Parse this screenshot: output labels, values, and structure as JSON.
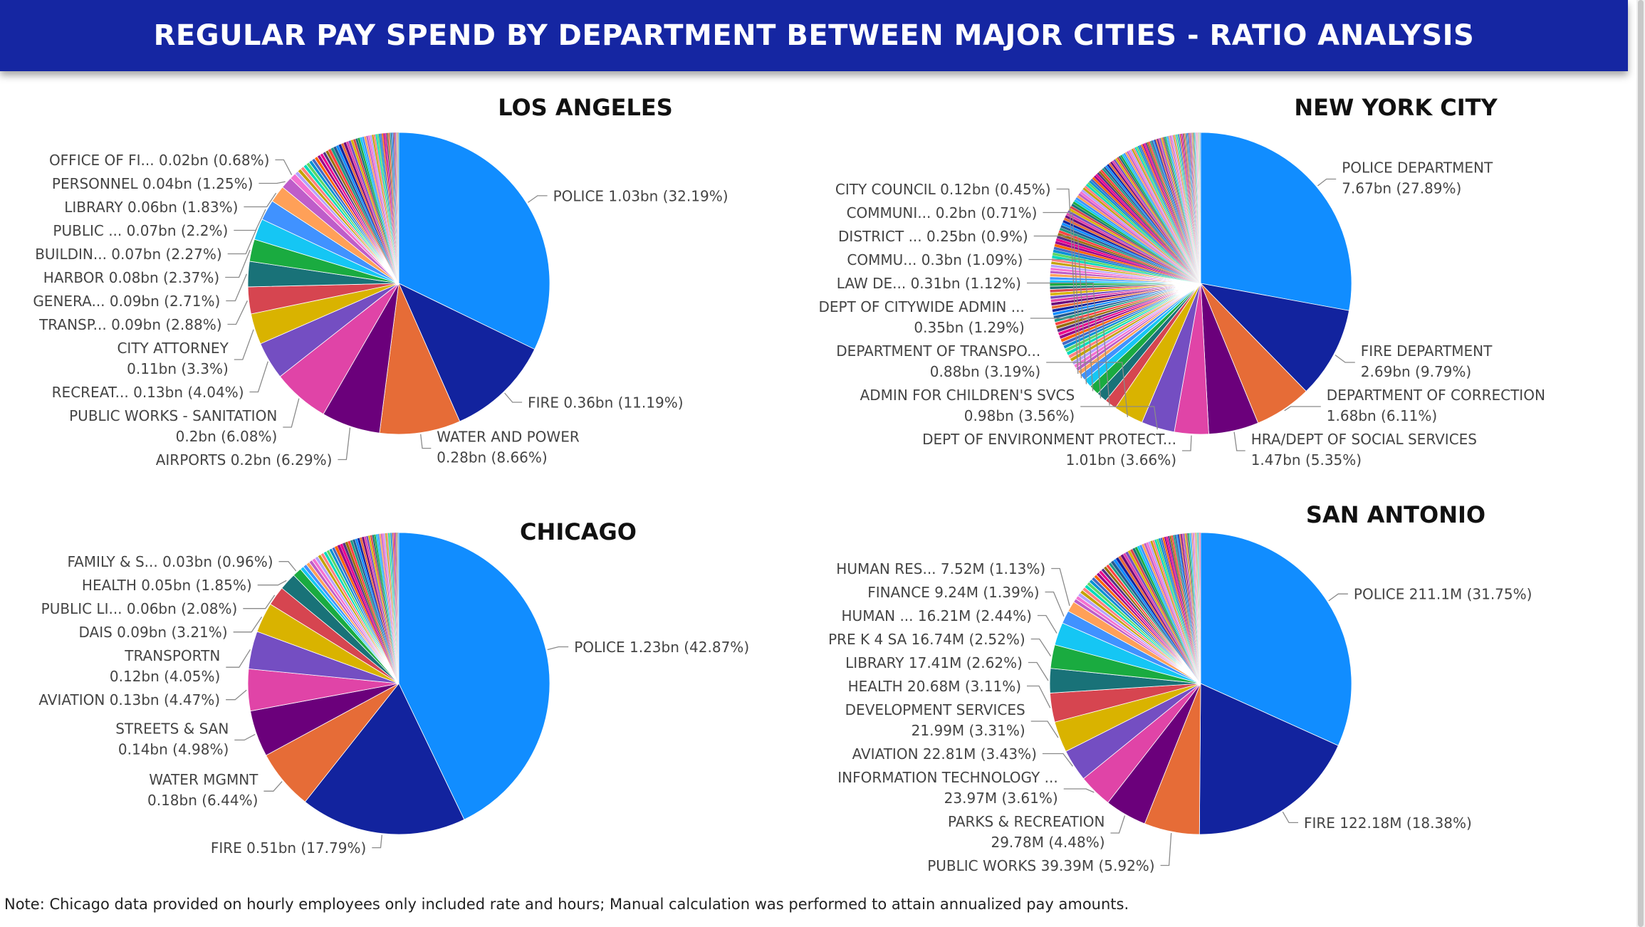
{
  "banner": {
    "title": "REGULAR PAY SPEND BY DEPARTMENT BETWEEN MAJOR CITIES - RATIO ANALYSIS"
  },
  "note": "Note: Chicago data provided on hourly employees only included rate and hours; Manual calculation was performed to attain annualized pay amounts.",
  "colors": {
    "slices": [
      "#118dff",
      "#12239e",
      "#e66c37",
      "#6b007b",
      "#e044a7",
      "#744ec2",
      "#d9b300",
      "#d64550",
      "#197278",
      "#1aab40",
      "#15c6f4",
      "#4092ff",
      "#ffa058",
      "#be5dc9",
      "#f472d0",
      "#b5a1ff",
      "#c4a200",
      "#ff8080",
      "#00dbbc",
      "#5bd667",
      "#0091d5",
      "#4668c5",
      "#ff6300",
      "#99008a",
      "#ec008c",
      "#533285",
      "#99700a",
      "#ff4141",
      "#1f9a85",
      "#255a91"
    ]
  },
  "chart_data": [
    {
      "type": "pie",
      "title": "LOS ANGELES",
      "slices": [
        {
          "label": "POLICE 1.03bn (32.19%)",
          "value": 32.19
        },
        {
          "label": "FIRE 0.36bn (11.19%)",
          "value": 11.19
        },
        {
          "label": "WATER AND POWER|0.28bn (8.66%)",
          "value": 8.66
        },
        {
          "label": "AIRPORTS 0.2bn (6.29%)",
          "value": 6.29
        },
        {
          "label": "PUBLIC WORKS - SANITATION|0.2bn (6.08%)",
          "value": 6.08
        },
        {
          "label": "RECREAT... 0.13bn (4.04%)",
          "value": 4.04
        },
        {
          "label": "CITY ATTORNEY|0.11bn (3.3%)",
          "value": 3.3
        },
        {
          "label": "TRANSP... 0.09bn (2.88%)",
          "value": 2.88
        },
        {
          "label": "GENERA... 0.09bn (2.71%)",
          "value": 2.71
        },
        {
          "label": "HARBOR 0.08bn (2.37%)",
          "value": 2.37
        },
        {
          "label": "BUILDIN... 0.07bn (2.27%)",
          "value": 2.27
        },
        {
          "label": "PUBLIC ... 0.07bn (2.2%)",
          "value": 2.2
        },
        {
          "label": "LIBRARY 0.06bn (1.83%)",
          "value": 1.83
        },
        {
          "label": "PERSONNEL 0.04bn (1.25%)",
          "value": 1.25
        },
        {
          "label": "OFFICE OF FI... 0.02bn (0.68%)",
          "value": 0.68
        }
      ]
    },
    {
      "type": "pie",
      "title": "NEW YORK CITY",
      "slices": [
        {
          "label": "POLICE DEPARTMENT|7.67bn (27.89%)",
          "value": 27.89
        },
        {
          "label": "FIRE DEPARTMENT|2.69bn (9.79%)",
          "value": 9.79
        },
        {
          "label": "DEPARTMENT OF CORRECTION|1.68bn (6.11%)",
          "value": 6.11
        },
        {
          "label": "HRA/DEPT OF SOCIAL SERVICES|1.47bn (5.35%)",
          "value": 5.35
        },
        {
          "label": "DEPT OF ENVIRONMENT PROTECT...|1.01bn (3.66%)",
          "value": 3.66
        },
        {
          "label": "ADMIN FOR CHILDREN'S SVCS|0.98bn (3.56%)",
          "value": 3.56
        },
        {
          "label": "DEPARTMENT OF TRANSPO...|0.88bn (3.19%)",
          "value": 3.19
        },
        {
          "label": "DEPT OF CITYWIDE ADMIN ...|0.35bn (1.29%)",
          "value": 1.29
        },
        {
          "label": "LAW DE... 0.31bn (1.12%)",
          "value": 1.12
        },
        {
          "label": "COMMU... 0.3bn (1.09%)",
          "value": 1.09
        },
        {
          "label": "DISTRICT ... 0.25bn (0.9%)",
          "value": 0.9
        },
        {
          "label": "COMMUNI... 0.2bn (0.71%)",
          "value": 0.71
        },
        {
          "label": "CITY COUNCIL 0.12bn (0.45%)",
          "value": 0.45
        }
      ]
    },
    {
      "type": "pie",
      "title": "CHICAGO",
      "slices": [
        {
          "label": "POLICE 1.23bn (42.87%)",
          "value": 42.87
        },
        {
          "label": "FIRE 0.51bn (17.79%)",
          "value": 17.79
        },
        {
          "label": "WATER MGMNT|0.18bn (6.44%)",
          "value": 6.44
        },
        {
          "label": "STREETS & SAN|0.14bn (4.98%)",
          "value": 4.98
        },
        {
          "label": "AVIATION 0.13bn (4.47%)",
          "value": 4.47
        },
        {
          "label": "TRANSPORTN|0.12bn (4.05%)",
          "value": 4.05
        },
        {
          "label": "DAIS 0.09bn (3.21%)",
          "value": 3.21
        },
        {
          "label": "PUBLIC LI... 0.06bn (2.08%)",
          "value": 2.08
        },
        {
          "label": "HEALTH 0.05bn (1.85%)",
          "value": 1.85
        },
        {
          "label": "FAMILY & S... 0.03bn (0.96%)",
          "value": 0.96
        }
      ]
    },
    {
      "type": "pie",
      "title": "SAN ANTONIO",
      "slices": [
        {
          "label": "POLICE 211.1M (31.75%)",
          "value": 31.75
        },
        {
          "label": "FIRE 122.18M (18.38%)",
          "value": 18.38
        },
        {
          "label": "PUBLIC WORKS 39.39M (5.92%)",
          "value": 5.92
        },
        {
          "label": "PARKS & RECREATION|29.78M (4.48%)",
          "value": 4.48
        },
        {
          "label": "INFORMATION TECHNOLOGY ...|23.97M (3.61%)",
          "value": 3.61
        },
        {
          "label": "AVIATION 22.81M (3.43%)",
          "value": 3.43
        },
        {
          "label": "DEVELOPMENT SERVICES|21.99M (3.31%)",
          "value": 3.31
        },
        {
          "label": "HEALTH 20.68M (3.11%)",
          "value": 3.11
        },
        {
          "label": "LIBRARY 17.41M (2.62%)",
          "value": 2.62
        },
        {
          "label": "PRE K 4 SA 16.74M (2.52%)",
          "value": 2.52
        },
        {
          "label": "HUMAN ... 16.21M (2.44%)",
          "value": 2.44
        },
        {
          "label": "FINANCE 9.24M (1.39%)",
          "value": 1.39
        },
        {
          "label": "HUMAN RES... 7.52M (1.13%)",
          "value": 1.13
        }
      ]
    }
  ]
}
